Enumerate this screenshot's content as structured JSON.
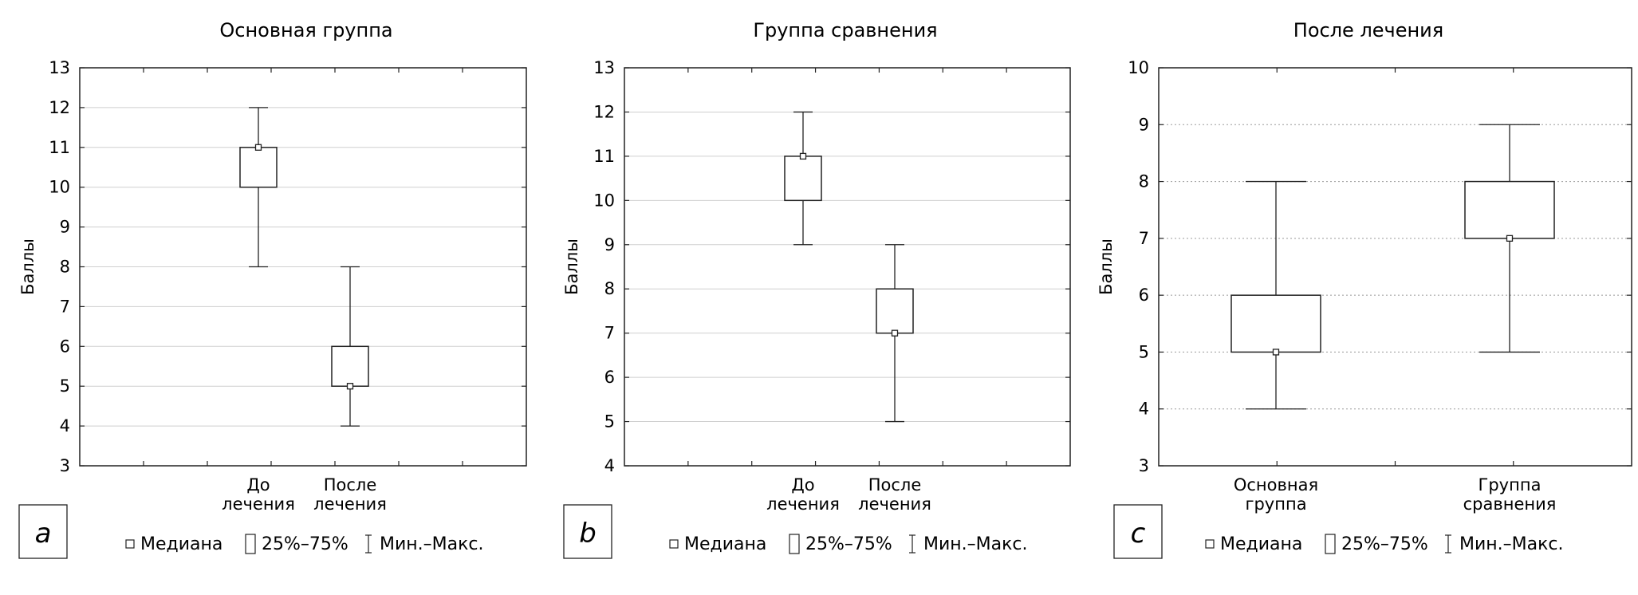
{
  "chart_data": [
    {
      "type": "boxplot",
      "panel_label": "a",
      "title": "Основная группа",
      "ylabel": "Баллы",
      "ylim": [
        3,
        13
      ],
      "yticks": [
        3,
        4,
        5,
        6,
        7,
        8,
        9,
        10,
        11,
        12,
        13
      ],
      "categories": [
        [
          "До",
          "лечения"
        ],
        [
          "После",
          "лечения"
        ]
      ],
      "boxes": [
        {
          "median": 11,
          "q1": 10,
          "q3": 11,
          "min": 8,
          "max": 12
        },
        {
          "median": 5,
          "q1": 5,
          "q3": 6,
          "min": 4,
          "max": 8
        }
      ],
      "legend": [
        "Медиана",
        "25%–75%",
        "Мин.–Макс."
      ]
    },
    {
      "type": "boxplot",
      "panel_label": "b",
      "title": "Группа сравнения",
      "ylabel": "Баллы",
      "ylim": [
        4,
        13
      ],
      "yticks": [
        4,
        5,
        6,
        7,
        8,
        9,
        10,
        11,
        12,
        13
      ],
      "categories": [
        [
          "До",
          "лечения"
        ],
        [
          "После",
          "лечения"
        ]
      ],
      "boxes": [
        {
          "median": 11,
          "q1": 10,
          "q3": 11,
          "min": 9,
          "max": 12
        },
        {
          "median": 7,
          "q1": 7,
          "q3": 8,
          "min": 5,
          "max": 9
        }
      ],
      "legend": [
        "Медиана",
        "25%–75%",
        "Мин.–Макс."
      ]
    },
    {
      "type": "boxplot",
      "panel_label": "c",
      "title": "После лечения",
      "ylabel": "Баллы",
      "ylim": [
        3,
        10
      ],
      "yticks": [
        3,
        4,
        5,
        6,
        7,
        8,
        9,
        10
      ],
      "categories": [
        [
          "Основная",
          "группа"
        ],
        [
          "Группа",
          "сравнения"
        ]
      ],
      "boxes": [
        {
          "median": 5,
          "q1": 5,
          "q3": 6,
          "min": 4,
          "max": 8
        },
        {
          "median": 7,
          "q1": 7,
          "q3": 8,
          "min": 5,
          "max": 9
        }
      ],
      "legend": [
        "Медиана",
        "25%–75%",
        "Мин.–Макс."
      ]
    }
  ]
}
